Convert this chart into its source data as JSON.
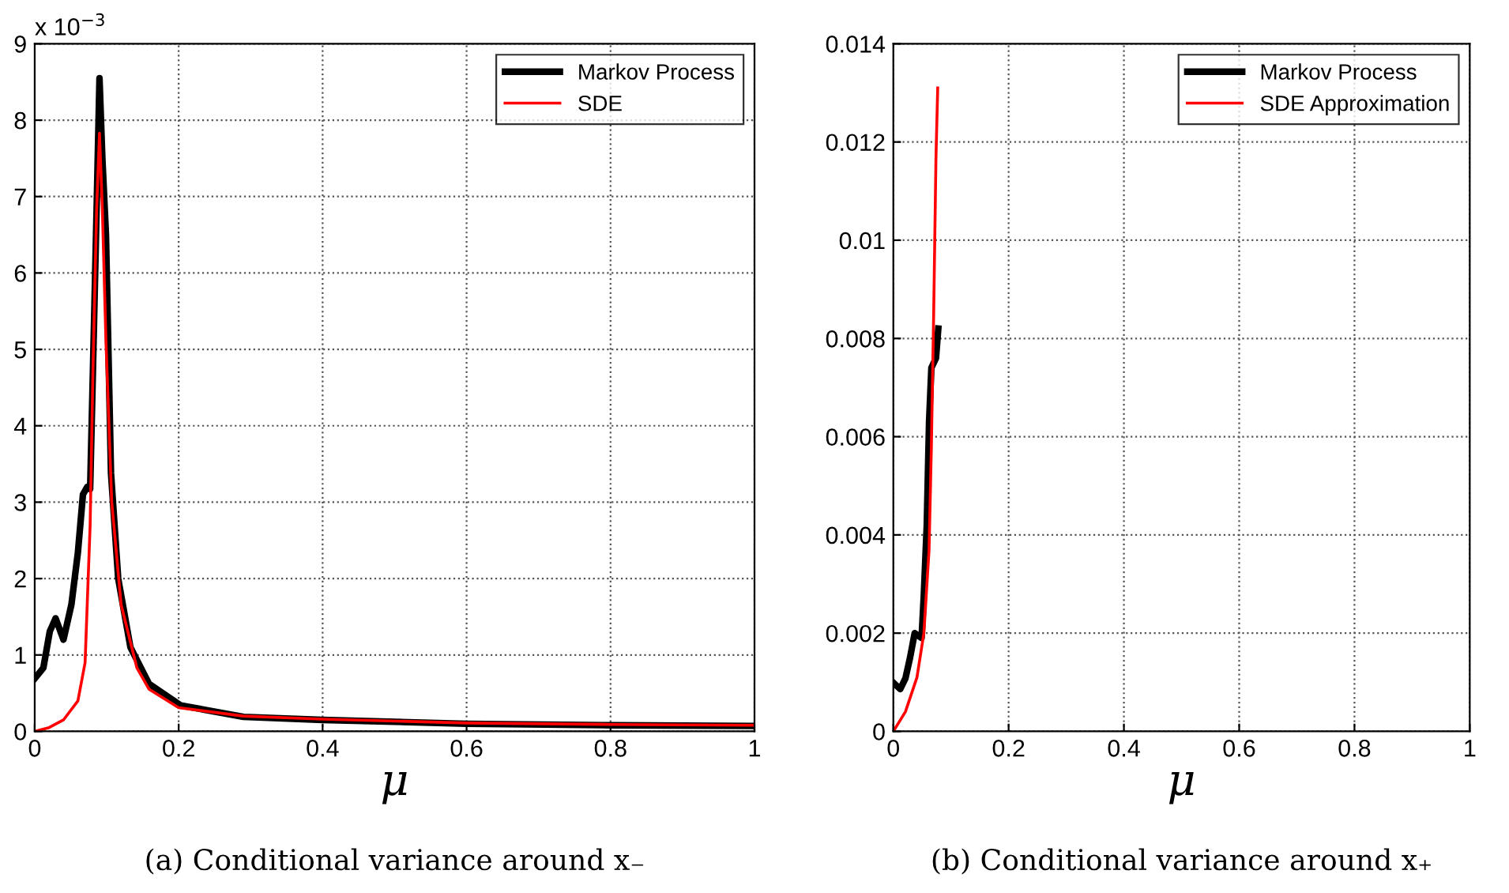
{
  "chart_data": [
    {
      "type": "line",
      "title": "(a) Conditional variance around x₋",
      "xlabel": "μ",
      "annotations": [
        "x 10$^{−3}$"
      ],
      "xlim": [
        0,
        1
      ],
      "xticks": [
        0,
        0.2,
        0.4,
        0.6,
        0.8,
        1
      ],
      "ylim": [
        0,
        9
      ],
      "yticks": [
        0,
        1,
        2,
        3,
        4,
        5,
        6,
        7,
        8,
        9
      ],
      "grid": true,
      "legend": "top right",
      "series": [
        {
          "name": "Markov Process",
          "color": "#000000",
          "x": [
            0,
            0.012,
            0.021,
            0.029,
            0.04,
            0.051,
            0.06,
            0.067,
            0.073,
            0.077,
            0.081,
            0.086,
            0.09,
            0.094,
            0.099,
            0.106,
            0.116,
            0.133,
            0.159,
            0.203,
            0.29,
            0.4,
            0.6,
            0.8,
            1
          ],
          "values": [
            0.69,
            0.83,
            1.31,
            1.48,
            1.2,
            1.66,
            2.34,
            3.1,
            3.2,
            3.17,
            4.76,
            6.83,
            8.55,
            7.5,
            6.5,
            3.38,
            2.0,
            1.1,
            0.62,
            0.34,
            0.19,
            0.15,
            0.1,
            0.08,
            0.07
          ]
        },
        {
          "name": "SDE",
          "color": "#ff0000",
          "x": [
            0,
            0.02,
            0.04,
            0.06,
            0.07,
            0.077,
            0.081,
            0.086,
            0.09,
            0.094,
            0.099,
            0.107,
            0.12,
            0.142,
            0.159,
            0.2,
            0.29,
            0.4,
            0.6,
            0.8,
            1
          ],
          "values": [
            0,
            0.05,
            0.15,
            0.4,
            0.9,
            2.7,
            4.76,
            6.83,
            7.83,
            6.83,
            5.1,
            3.0,
            1.66,
            0.83,
            0.55,
            0.31,
            0.2,
            0.16,
            0.11,
            0.09,
            0.08
          ]
        }
      ]
    },
    {
      "type": "line",
      "title": "(b) Conditional variance around x₊",
      "xlabel": "μ",
      "xlim": [
        0,
        1
      ],
      "xticks": [
        0,
        0.2,
        0.4,
        0.6,
        0.8,
        1
      ],
      "ylim": [
        0,
        0.014
      ],
      "yticks": [
        0,
        0.002,
        0.004,
        0.006,
        0.008,
        0.01,
        0.012,
        0.014
      ],
      "grid": true,
      "legend": "top right",
      "series": [
        {
          "name": "Markov Process",
          "color": "#000000",
          "x": [
            0.002,
            0.012,
            0.021,
            0.029,
            0.037,
            0.049,
            0.053,
            0.058,
            0.062,
            0.066,
            0.074,
            0.078
          ],
          "values": [
            0.00097,
            0.00086,
            0.00108,
            0.0015,
            0.002,
            0.0019,
            0.0028,
            0.0042,
            0.0063,
            0.0074,
            0.0076,
            0.0082
          ]
        },
        {
          "name": "SDE Approximation",
          "color": "#ff0000",
          "x": [
            0,
            0.021,
            0.041,
            0.053,
            0.062,
            0.066,
            0.07,
            0.074,
            0.077
          ],
          "values": [
            0,
            0.0004,
            0.0011,
            0.002,
            0.0037,
            0.0058,
            0.0085,
            0.0117,
            0.0131
          ]
        }
      ]
    }
  ]
}
